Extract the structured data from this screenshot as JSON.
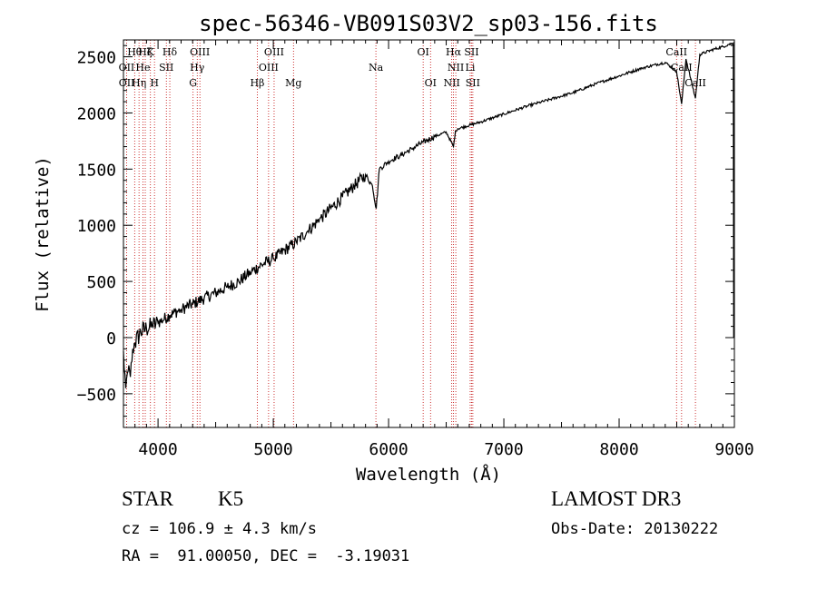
{
  "chart_data": {
    "type": "line",
    "title": "spec-56346-VB091S03V2_sp03-156.fits",
    "xlabel": "Wavelength (Å)",
    "ylabel": "Flux (relative)",
    "xlim": [
      3700,
      9000
    ],
    "ylim": [
      -800,
      2650
    ],
    "x_ticks": [
      4000,
      5000,
      6000,
      7000,
      8000,
      9000
    ],
    "y_ticks": [
      -500,
      0,
      500,
      1000,
      1500,
      2000,
      2500
    ],
    "grid": false,
    "series": [
      {
        "name": "flux",
        "x": [
          3700,
          3720,
          3740,
          3760,
          3780,
          3800,
          3850,
          3900,
          3950,
          4000,
          4100,
          4200,
          4300,
          4400,
          4500,
          4600,
          4700,
          4800,
          4900,
          5000,
          5100,
          5200,
          5300,
          5400,
          5500,
          5600,
          5700,
          5800,
          5860,
          5893,
          5920,
          6000,
          6100,
          6200,
          6300,
          6400,
          6500,
          6563,
          6580,
          6600,
          6700,
          6800,
          7000,
          7200,
          7400,
          7600,
          7800,
          8000,
          8200,
          8400,
          8498,
          8542,
          8580,
          8662,
          8700,
          8800,
          8900,
          8950,
          8990
        ],
        "y": [
          -150,
          -450,
          -300,
          -350,
          -100,
          -50,
          50,
          80,
          100,
          130,
          200,
          250,
          300,
          350,
          400,
          450,
          500,
          580,
          650,
          700,
          780,
          850,
          950,
          1050,
          1150,
          1250,
          1350,
          1450,
          1350,
          1150,
          1500,
          1570,
          1620,
          1680,
          1740,
          1790,
          1830,
          1700,
          1840,
          1860,
          1890,
          1920,
          1990,
          2060,
          2120,
          2180,
          2260,
          2330,
          2400,
          2450,
          2370,
          2080,
          2480,
          2130,
          2520,
          2560,
          2590,
          2610,
          2620
        ]
      }
    ],
    "line_labels": [
      {
        "row": 1,
        "x": 3797,
        "text": "Hθ"
      },
      {
        "row": 1,
        "x": 3889,
        "text": "Hζ"
      },
      {
        "row": 1,
        "x": 3934,
        "text": "K"
      },
      {
        "row": 1,
        "x": 4102,
        "text": "Hδ"
      },
      {
        "row": 1,
        "x": 4363,
        "text": "OIII"
      },
      {
        "row": 1,
        "x": 5007,
        "text": "OIII"
      },
      {
        "row": 1,
        "x": 6300,
        "text": "OI"
      },
      {
        "row": 1,
        "x": 6563,
        "text": "Hα"
      },
      {
        "row": 1,
        "x": 6720,
        "text": "SII"
      },
      {
        "row": 1,
        "x": 8498,
        "text": "CaII"
      },
      {
        "row": 2,
        "x": 3727,
        "text": "OII"
      },
      {
        "row": 2,
        "x": 3869,
        "text": "He"
      },
      {
        "row": 2,
        "x": 4072,
        "text": "SII"
      },
      {
        "row": 2,
        "x": 4340,
        "text": "Hγ"
      },
      {
        "row": 2,
        "x": 4959,
        "text": "OIII"
      },
      {
        "row": 2,
        "x": 5890,
        "text": "Na"
      },
      {
        "row": 2,
        "x": 6583,
        "text": "NII"
      },
      {
        "row": 2,
        "x": 6708,
        "text": "Li"
      },
      {
        "row": 2,
        "x": 8542,
        "text": "CaII"
      },
      {
        "row": 3,
        "x": 3728,
        "text": "OII"
      },
      {
        "row": 3,
        "x": 3835,
        "text": "Hη"
      },
      {
        "row": 3,
        "x": 3969,
        "text": "H"
      },
      {
        "row": 3,
        "x": 4304,
        "text": "G"
      },
      {
        "row": 3,
        "x": 4861,
        "text": "Hβ"
      },
      {
        "row": 3,
        "x": 5175,
        "text": "Mg"
      },
      {
        "row": 3,
        "x": 6364,
        "text": "OI"
      },
      {
        "row": 3,
        "x": 6548,
        "text": "NII"
      },
      {
        "row": 3,
        "x": 6731,
        "text": "SII"
      },
      {
        "row": 3,
        "x": 8662,
        "text": "CaII"
      }
    ],
    "reference_lines": [
      3727,
      3797,
      3835,
      3869,
      3889,
      3934,
      3969,
      4072,
      4102,
      4304,
      4340,
      4363,
      4861,
      4959,
      5007,
      5175,
      5890,
      6300,
      6364,
      6548,
      6563,
      6583,
      6708,
      6720,
      6731,
      8498,
      8542,
      8662
    ],
    "colors": {
      "spectrum": "#000000",
      "reference": "#c00000",
      "axes": "#000000"
    }
  },
  "info": {
    "object_class": "STAR",
    "subclass": "K5",
    "survey": "LAMOST DR3",
    "redshift": "cz = 106.9 ± 4.3 km/s",
    "obs_date": "Obs-Date: 20130222",
    "coords": "RA =  91.00050, DEC =  -3.19031"
  }
}
